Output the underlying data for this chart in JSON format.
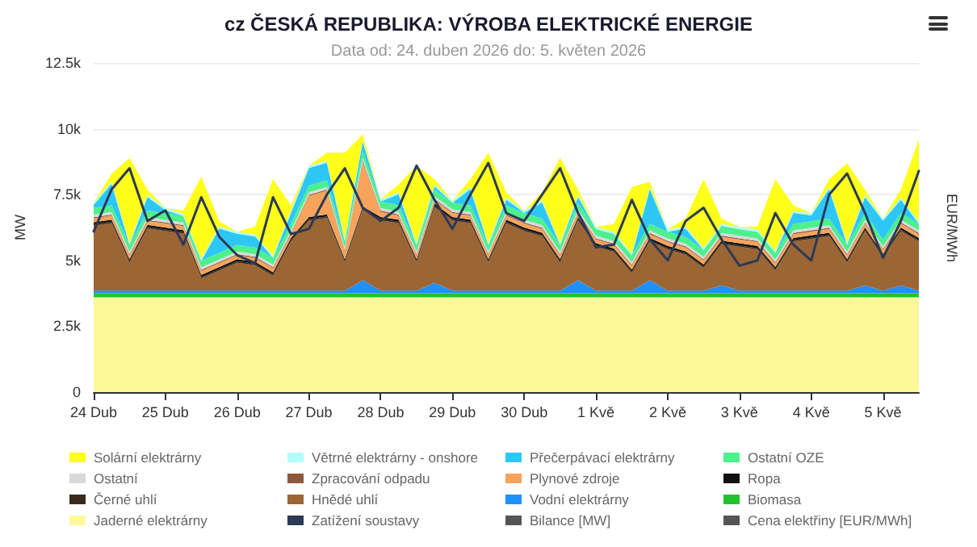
{
  "chart_data": {
    "type": "area",
    "stacked": true,
    "title": "cz ČESKÁ REPUBLIKA: VÝROBA ELEKTRICKÉ ENERGIE",
    "subtitle": "Data od: 24. duben 2026 do: 5. květen 2026",
    "ylabel": "MW",
    "y2label": "EUR/MWh",
    "x": [
      "2026-04-24T00:00",
      "2026-04-24T06:00",
      "2026-04-24T12:00",
      "2026-04-24T18:00",
      "2026-04-25T00:00",
      "2026-04-25T06:00",
      "2026-04-25T12:00",
      "2026-04-25T18:00",
      "2026-04-26T00:00",
      "2026-04-26T06:00",
      "2026-04-26T12:00",
      "2026-04-26T18:00",
      "2026-04-27T00:00",
      "2026-04-27T06:00",
      "2026-04-27T12:00",
      "2026-04-27T18:00",
      "2026-04-28T00:00",
      "2026-04-28T06:00",
      "2026-04-28T12:00",
      "2026-04-28T18:00",
      "2026-04-29T00:00",
      "2026-04-29T06:00",
      "2026-04-29T12:00",
      "2026-04-29T18:00",
      "2026-04-30T00:00",
      "2026-04-30T06:00",
      "2026-04-30T12:00",
      "2026-04-30T18:00",
      "2026-05-01T00:00",
      "2026-05-01T06:00",
      "2026-05-01T12:00",
      "2026-05-01T18:00",
      "2026-05-02T00:00",
      "2026-05-02T06:00",
      "2026-05-02T12:00",
      "2026-05-02T18:00",
      "2026-05-03T00:00",
      "2026-05-03T06:00",
      "2026-05-03T12:00",
      "2026-05-03T18:00",
      "2026-05-04T00:00",
      "2026-05-04T06:00",
      "2026-05-04T12:00",
      "2026-05-04T18:00",
      "2026-05-05T00:00",
      "2026-05-05T06:00",
      "2026-05-05T12:00"
    ],
    "xlim": [
      "2026-04-24T00:00",
      "2026-05-05T12:00"
    ],
    "xticks": [
      {
        "value": "2026-04-24",
        "label": "24 Dub"
      },
      {
        "value": "2026-04-25",
        "label": "25 Dub"
      },
      {
        "value": "2026-04-26",
        "label": "26 Dub"
      },
      {
        "value": "2026-04-27",
        "label": "27 Dub"
      },
      {
        "value": "2026-04-28",
        "label": "28 Dub"
      },
      {
        "value": "2026-04-29",
        "label": "29 Dub"
      },
      {
        "value": "2026-04-30",
        "label": "30 Dub"
      },
      {
        "value": "2026-05-01",
        "label": "1 Kvě"
      },
      {
        "value": "2026-05-02",
        "label": "2 Kvě"
      },
      {
        "value": "2026-05-03",
        "label": "3 Kvě"
      },
      {
        "value": "2026-05-04",
        "label": "4 Kvě"
      },
      {
        "value": "2026-05-05",
        "label": "5 Kvě"
      }
    ],
    "ylim": [
      0,
      12500
    ],
    "yticks": [
      0,
      {
        "value": 2500,
        "label": "2.5k"
      },
      {
        "value": 5000,
        "label": "5k"
      },
      {
        "value": 7500,
        "label": "7.5k"
      },
      {
        "value": 10000,
        "label": "10k"
      },
      {
        "value": 12500,
        "label": "12.5k"
      }
    ],
    "grid": "y",
    "legend": "bottom",
    "marker": "none",
    "line_style": "solid",
    "series": [
      {
        "name": "Jaderné elektrárny",
        "color": "#fdf99a",
        "values": [
          3600,
          3600,
          3600,
          3600,
          3600,
          3600,
          3600,
          3600,
          3600,
          3600,
          3600,
          3600,
          3600,
          3600,
          3600,
          3600,
          3600,
          3600,
          3600,
          3600,
          3600,
          3600,
          3600,
          3600,
          3600,
          3600,
          3600,
          3600,
          3600,
          3600,
          3600,
          3600,
          3600,
          3600,
          3600,
          3600,
          3600,
          3600,
          3600,
          3600,
          3600,
          3600,
          3600,
          3600,
          3600,
          3600,
          3600
        ]
      },
      {
        "name": "Biomasa",
        "color": "#22c22e",
        "values": [
          150,
          150,
          150,
          150,
          150,
          150,
          150,
          150,
          150,
          150,
          150,
          150,
          150,
          150,
          150,
          150,
          150,
          150,
          150,
          150,
          150,
          150,
          150,
          150,
          150,
          150,
          150,
          150,
          150,
          150,
          150,
          150,
          150,
          150,
          150,
          150,
          150,
          150,
          150,
          150,
          150,
          150,
          150,
          150,
          150,
          150,
          150
        ]
      },
      {
        "name": "Vodní elektrárny",
        "color": "#1e90ff",
        "values": [
          100,
          100,
          100,
          100,
          100,
          100,
          100,
          100,
          100,
          100,
          100,
          100,
          100,
          100,
          100,
          500,
          100,
          100,
          100,
          400,
          100,
          100,
          100,
          100,
          100,
          100,
          100,
          500,
          100,
          100,
          100,
          500,
          100,
          100,
          100,
          300,
          100,
          100,
          100,
          100,
          100,
          100,
          100,
          300,
          100,
          300,
          100
        ]
      },
      {
        "name": "Hnědé uhlí",
        "color": "#9c6534",
        "values": [
          2470,
          2570,
          1070,
          2370,
          2270,
          2170,
          470,
          770,
          1070,
          970,
          570,
          1870,
          2670,
          2770,
          1070,
          2670,
          2670,
          2570,
          1070,
          2870,
          2670,
          2570,
          1070,
          2570,
          2270,
          2070,
          1070,
          2270,
          1670,
          1470,
          670,
          1470,
          1570,
          1370,
          870,
          1570,
          1670,
          1570,
          770,
          1870,
          1970,
          2070,
          1070,
          2070,
          1270,
          2070,
          1870
        ]
      },
      {
        "name": "Černé uhlí",
        "color": "#3a2a1a",
        "values": [
          50,
          50,
          50,
          50,
          50,
          50,
          50,
          50,
          50,
          50,
          50,
          50,
          50,
          50,
          50,
          50,
          50,
          50,
          50,
          50,
          50,
          50,
          50,
          50,
          50,
          50,
          50,
          50,
          50,
          50,
          50,
          50,
          50,
          50,
          50,
          50,
          50,
          50,
          50,
          50,
          50,
          50,
          50,
          50,
          50,
          50,
          50
        ]
      },
      {
        "name": "Ropa",
        "color": "#111111",
        "values": [
          80,
          80,
          80,
          80,
          80,
          80,
          80,
          80,
          80,
          80,
          80,
          80,
          80,
          80,
          80,
          80,
          80,
          80,
          80,
          80,
          80,
          80,
          80,
          80,
          80,
          80,
          80,
          80,
          80,
          80,
          80,
          80,
          80,
          80,
          80,
          80,
          80,
          80,
          80,
          80,
          80,
          80,
          80,
          80,
          80,
          80,
          80
        ]
      },
      {
        "name": "Plynové zdroje",
        "color": "#f7a35c",
        "values": [
          150,
          150,
          150,
          150,
          150,
          150,
          150,
          150,
          150,
          150,
          150,
          150,
          800,
          900,
          300,
          1700,
          200,
          150,
          150,
          150,
          150,
          150,
          150,
          150,
          150,
          150,
          150,
          150,
          150,
          150,
          150,
          150,
          150,
          150,
          150,
          150,
          150,
          150,
          150,
          150,
          150,
          150,
          150,
          150,
          150,
          150,
          150
        ]
      },
      {
        "name": "Zpracování odpadu",
        "color": "#8b5a3c",
        "values": [
          40,
          40,
          40,
          40,
          40,
          40,
          40,
          40,
          40,
          40,
          40,
          40,
          40,
          40,
          40,
          40,
          40,
          40,
          40,
          40,
          40,
          40,
          40,
          40,
          40,
          40,
          40,
          40,
          40,
          40,
          40,
          40,
          40,
          40,
          40,
          40,
          40,
          40,
          40,
          40,
          40,
          40,
          40,
          40,
          40,
          40,
          40
        ]
      },
      {
        "name": "Ostatní",
        "color": "#d9d9d9",
        "values": [
          100,
          100,
          100,
          100,
          100,
          100,
          100,
          100,
          100,
          100,
          100,
          100,
          100,
          100,
          100,
          100,
          100,
          100,
          100,
          100,
          100,
          100,
          100,
          100,
          100,
          100,
          100,
          100,
          100,
          100,
          100,
          100,
          100,
          100,
          100,
          100,
          100,
          100,
          100,
          100,
          100,
          100,
          100,
          100,
          100,
          100,
          100
        ]
      },
      {
        "name": "Ostatní OZE",
        "color": "#4cf08c",
        "values": [
          250,
          250,
          250,
          250,
          250,
          250,
          250,
          250,
          250,
          250,
          250,
          250,
          250,
          250,
          250,
          250,
          250,
          250,
          250,
          250,
          250,
          250,
          250,
          250,
          250,
          250,
          250,
          250,
          250,
          250,
          250,
          250,
          250,
          250,
          250,
          250,
          250,
          250,
          250,
          250,
          250,
          250,
          250,
          250,
          250,
          250,
          250
        ]
      },
      {
        "name": "Přečerpávací elektrárny",
        "color": "#2ec7f5",
        "values": [
          120,
          820,
          0,
          520,
          120,
          0,
          0,
          920,
          420,
          420,
          0,
          420,
          670,
          670,
          0,
          370,
          0,
          420,
          0,
          120,
          0,
          620,
          0,
          220,
          20,
          620,
          0,
          220,
          0,
          20,
          0,
          1320,
          0,
          320,
          0,
          20,
          0,
          0,
          0,
          420,
          220,
          1120,
          0,
          620,
          720,
          520,
          0
        ]
      },
      {
        "name": "Větrné elektrárny - onshore",
        "color": "#b3fcfc",
        "values": [
          80,
          80,
          80,
          80,
          80,
          80,
          80,
          80,
          80,
          80,
          80,
          80,
          80,
          80,
          80,
          80,
          80,
          80,
          80,
          80,
          80,
          80,
          80,
          80,
          80,
          80,
          80,
          80,
          80,
          80,
          80,
          80,
          80,
          80,
          80,
          80,
          80,
          80,
          80,
          80,
          80,
          80,
          80,
          80,
          80,
          80,
          80
        ]
      },
      {
        "name": "Solární elektrárny",
        "color": "#ffff1a",
        "values": [
          0,
          300,
          3220,
          200,
          0,
          120,
          3120,
          200,
          0,
          300,
          2920,
          200,
          0,
          300,
          3270,
          200,
          0,
          300,
          2920,
          200,
          0,
          300,
          3420,
          200,
          0,
          300,
          3220,
          200,
          0,
          300,
          2520,
          200,
          0,
          300,
          2620,
          200,
          0,
          120,
          2720,
          200,
          0,
          300,
          3020,
          200,
          0,
          300,
          3120
        ]
      },
      {
        "name": "Zatížení soustavy",
        "type": "line",
        "color": "#2b3a55",
        "values": [
          6100,
          7700,
          8500,
          6500,
          6900,
          5600,
          7400,
          5900,
          5200,
          4900,
          7400,
          6000,
          6200,
          7500,
          8500,
          7000,
          6500,
          7000,
          8600,
          7300,
          6200,
          7500,
          8700,
          6800,
          6500,
          7500,
          8500,
          6800,
          5500,
          5600,
          7300,
          5800,
          5000,
          6500,
          7000,
          5800,
          4800,
          5000,
          6800,
          5600,
          5000,
          7500,
          8300,
          6800,
          5100,
          6500,
          8400
        ]
      },
      {
        "name": "Bilance [MW]",
        "type": "line",
        "color": "#555555",
        "values": [
          null,
          null,
          null,
          null,
          null,
          null,
          null,
          null,
          null,
          null,
          null,
          null,
          null,
          null,
          null,
          null,
          null,
          null,
          null,
          null,
          null,
          null,
          null,
          null,
          null,
          null,
          null,
          null,
          null,
          null,
          null,
          null,
          null,
          null,
          null,
          null,
          null,
          null,
          null,
          null,
          null,
          null,
          null,
          null,
          null,
          null,
          null
        ]
      },
      {
        "name": "Cena elektřiny [EUR/MWh]",
        "type": "line",
        "color": "#555555",
        "values": [
          null,
          null,
          null,
          null,
          null,
          null,
          null,
          null,
          null,
          null,
          null,
          null,
          null,
          null,
          null,
          null,
          null,
          null,
          null,
          null,
          null,
          null,
          null,
          null,
          null,
          null,
          null,
          null,
          null,
          null,
          null,
          null,
          null,
          null,
          null,
          null,
          null,
          null,
          null,
          null,
          null,
          null,
          null,
          null,
          null,
          null,
          null
        ]
      }
    ]
  }
}
